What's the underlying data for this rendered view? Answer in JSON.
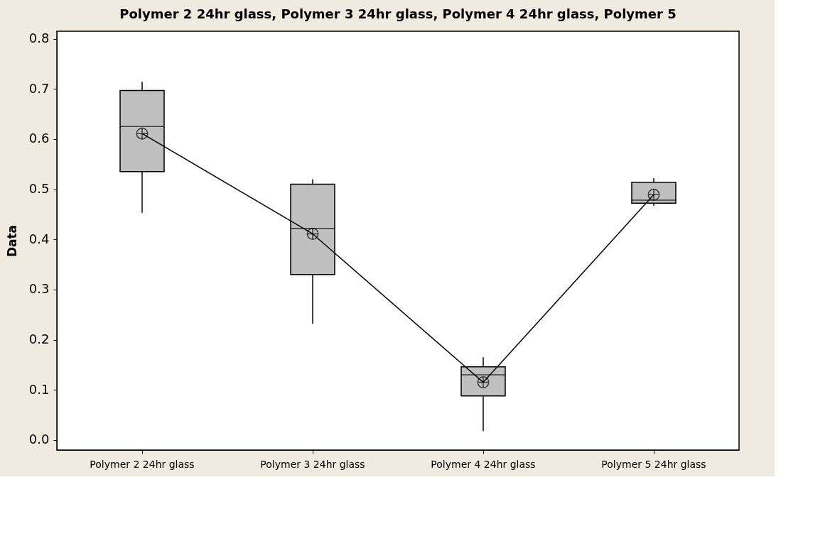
{
  "chart_data": {
    "type": "box",
    "title": "Polymer 2 24hr glass, Polymer 3 24hr glass, Polymer 4 24hr glass, Polymer 5",
    "ylabel": "Data",
    "categories": [
      "Polymer 2 24hr glass",
      "Polymer 3 24hr glass",
      "Polymer 4 24hr glass",
      "Polymer 5 24hr glass"
    ],
    "boxes": [
      {
        "low": 0.453,
        "q1": 0.535,
        "median": 0.625,
        "q3": 0.697,
        "high": 0.714
      },
      {
        "low": 0.232,
        "q1": 0.33,
        "median": 0.422,
        "q3": 0.51,
        "high": 0.52
      },
      {
        "low": 0.018,
        "q1": 0.088,
        "median": 0.13,
        "q3": 0.146,
        "high": 0.165
      },
      {
        "low": 0.467,
        "q1": 0.472,
        "median": 0.478,
        "q3": 0.514,
        "high": 0.522
      }
    ],
    "color": "#c0c0c0",
    "series": [
      {
        "type": "line",
        "color": "#000000",
        "values": [
          0.611,
          0.411,
          0.115,
          0.489
        ]
      }
    ],
    "ylim": [
      -0.02,
      0.815
    ],
    "yticks": [
      {
        "value": 0,
        "label": "0.0"
      },
      0.1,
      0.2,
      0.3,
      0.4,
      0.5,
      0.6,
      0.7,
      0.8
    ],
    "grid": false,
    "marker": "cross"
  }
}
